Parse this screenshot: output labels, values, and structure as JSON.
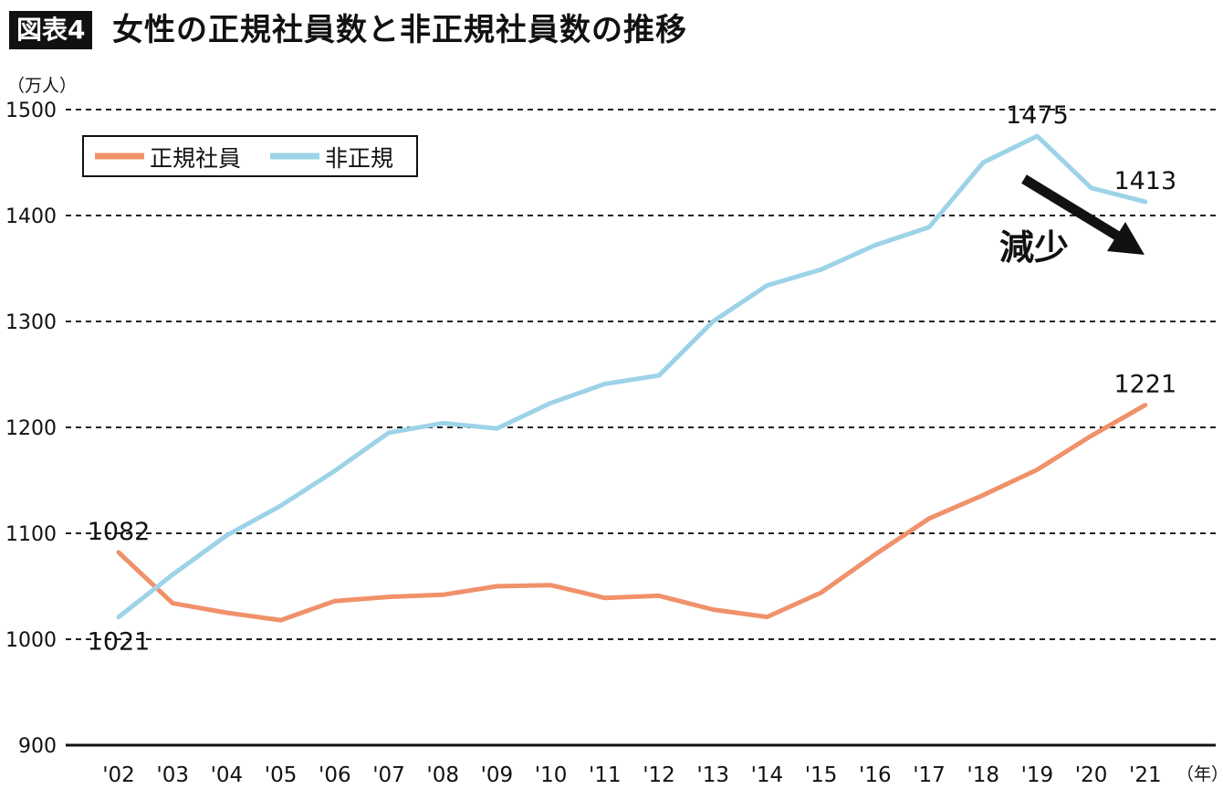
{
  "header": {
    "figure_label": "図表4",
    "title": "女性の正規社員数と非正規社員数の推移"
  },
  "chart_data": {
    "type": "line",
    "title": "女性の正規社員数と非正規社員数の推移",
    "ylabel": "（万人）",
    "xlabel": "（年）",
    "ylim": [
      900,
      1500
    ],
    "yticks": [
      900,
      1000,
      1100,
      1200,
      1300,
      1400,
      1500
    ],
    "grid": true,
    "legend_position": "top-left",
    "categories": [
      "'02",
      "'03",
      "'04",
      "'05",
      "'06",
      "'07",
      "'08",
      "'09",
      "'10",
      "'11",
      "'12",
      "'13",
      "'14",
      "'15",
      "'16",
      "'17",
      "'18",
      "'19",
      "'20",
      "'21"
    ],
    "series": [
      {
        "name": "正規社員",
        "color": "#f0916a",
        "values": [
          1082,
          1034,
          1025,
          1018,
          1036,
          1040,
          1042,
          1050,
          1051,
          1039,
          1041,
          1028,
          1021,
          1044,
          1080,
          1114,
          1136,
          1160,
          1192,
          1221
        ]
      },
      {
        "name": "非正規",
        "color": "#9dd3e8",
        "values": [
          1021,
          1061,
          1098,
          1126,
          1159,
          1195,
          1204,
          1199,
          1223,
          1241,
          1249,
          1300,
          1334,
          1349,
          1372,
          1389,
          1450,
          1475,
          1426,
          1413
        ]
      }
    ],
    "data_labels": [
      {
        "text": "1082",
        "series": 0,
        "index": 0
      },
      {
        "text": "1021",
        "series": 1,
        "index": 0
      },
      {
        "text": "1221",
        "series": 0,
        "index": 19
      },
      {
        "text": "1475",
        "series": 1,
        "index": 17
      },
      {
        "text": "1413",
        "series": 1,
        "index": 19
      }
    ],
    "annotation": {
      "text": "減少",
      "arrow": "down-right"
    }
  }
}
